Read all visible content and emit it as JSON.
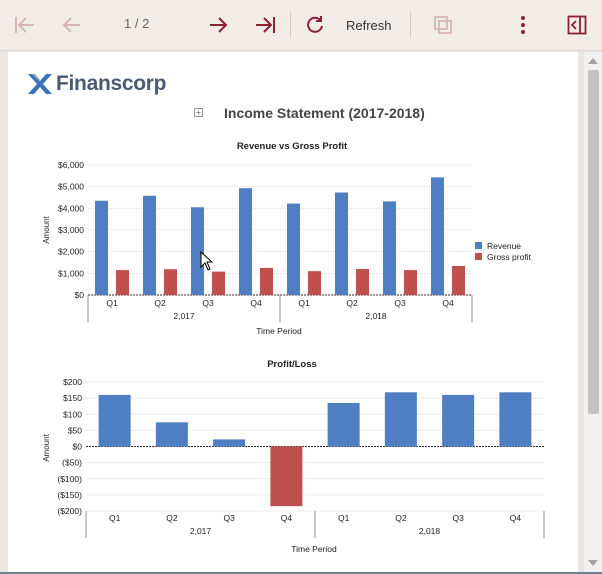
{
  "toolbar": {
    "page_indicator": "1 / 2",
    "refresh_label": "Refresh",
    "icons": [
      "first-page-icon",
      "previous-page-icon",
      "next-page-icon",
      "last-page-icon",
      "refresh-icon",
      "export-icon",
      "more-icon",
      "sidebar-toggle-icon"
    ]
  },
  "report": {
    "logo_text": "Finanscorp",
    "title": "Income Statement (2017-2018)",
    "expand_glyph": "+"
  },
  "colors": {
    "revenue": "#4f7fc2",
    "gross_profit": "#c0504d",
    "profit_positive": "#4f7fc2",
    "profit_negative": "#c0504d",
    "accent": "#8b2332"
  },
  "chart_data": [
    {
      "type": "bar",
      "title": "Revenue vs Gross Profit",
      "xlabel": "Time Period",
      "ylabel": "Amount",
      "categories": [
        "Q1",
        "Q2",
        "Q3",
        "Q4",
        "Q1",
        "Q2",
        "Q3",
        "Q4"
      ],
      "groups": [
        {
          "label": "2,017",
          "span": 4
        },
        {
          "label": "2,018",
          "span": 4
        }
      ],
      "series": [
        {
          "name": "Revenue",
          "values": [
            4350,
            4580,
            4050,
            4930,
            4220,
            4730,
            4320,
            5430
          ]
        },
        {
          "name": "Gross profit",
          "values": [
            1150,
            1190,
            1080,
            1250,
            1100,
            1200,
            1150,
            1340
          ]
        }
      ],
      "ylim": [
        0,
        6000
      ],
      "yticks": [
        "$0",
        "$1,000",
        "$2,000",
        "$3,000",
        "$4,000",
        "$5,000",
        "$6,000"
      ],
      "legend": "right"
    },
    {
      "type": "bar",
      "title": "Profit/Loss",
      "xlabel": "Time Period",
      "ylabel": "Amount",
      "categories": [
        "Q1",
        "Q2",
        "Q3",
        "Q4",
        "Q1",
        "Q2",
        "Q3",
        "Q4"
      ],
      "groups": [
        {
          "label": "2,017",
          "span": 4
        },
        {
          "label": "2,018",
          "span": 4
        }
      ],
      "series": [
        {
          "values": [
            160,
            75,
            22,
            -185,
            135,
            168,
            160,
            168
          ]
        }
      ],
      "ylim": [
        -200,
        200
      ],
      "yticks": [
        "($200)",
        "($150)",
        "($100)",
        "($50)",
        "$0",
        "$50",
        "$100",
        "$150",
        "$200"
      ]
    }
  ]
}
